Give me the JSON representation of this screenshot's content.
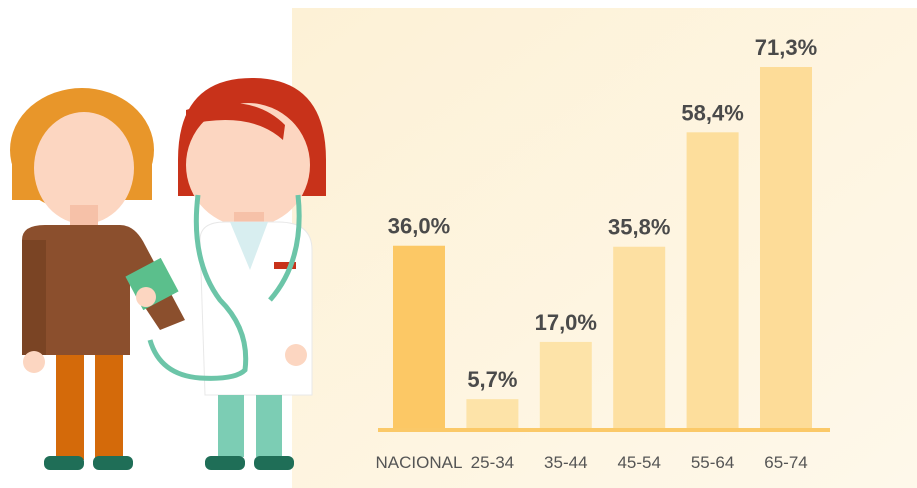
{
  "chart_data": {
    "type": "bar",
    "categories": [
      "NACIONAL",
      "25-34",
      "35-44",
      "45-54",
      "55-64",
      "65-74"
    ],
    "values": [
      36.0,
      5.7,
      17.0,
      35.8,
      58.4,
      71.3
    ],
    "value_labels": [
      "36,0%",
      "5,7%",
      "17,0%",
      "35,8%",
      "58,4%",
      "71,3%"
    ],
    "colors": [
      "#fcc865",
      "#fde3a8",
      "#fde3a8",
      "#fde0a2",
      "#fdde9c",
      "#fddc98"
    ]
  }
}
